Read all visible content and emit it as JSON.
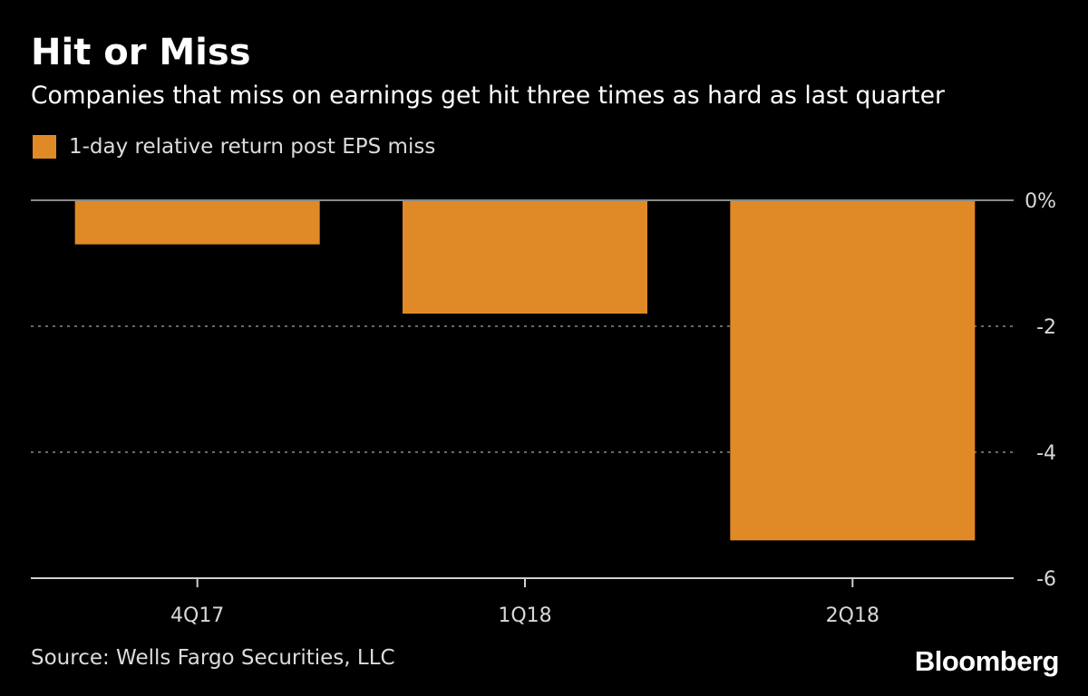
{
  "header": {
    "title": "Hit or Miss",
    "subtitle": "Companies that miss on earnings get hit three times as hard as last quarter"
  },
  "legend": {
    "label": "1-day relative return post EPS miss"
  },
  "footer": {
    "source": "Source: Wells Fargo Securities, LLC",
    "brand": "Bloomberg"
  },
  "colors": {
    "background": "#000000",
    "bar": "#df8a26",
    "grid": "#8a8a8a",
    "axis": "#d0d0d0",
    "tick_text": "#d8d8d8"
  },
  "chart_data": {
    "type": "bar",
    "categories": [
      "4Q17",
      "1Q18",
      "2Q18"
    ],
    "series": [
      {
        "name": "1-day relative return post EPS miss",
        "values": [
          -0.7,
          -1.8,
          -5.4
        ]
      }
    ],
    "ylim": [
      -6,
      0
    ],
    "yticks": [
      0,
      -2,
      -4,
      -6
    ],
    "ytick_labels": [
      "0%",
      "-2",
      "-4",
      "-6"
    ],
    "y_axis_side": "right",
    "grid": true,
    "legend_position": "top-left"
  }
}
